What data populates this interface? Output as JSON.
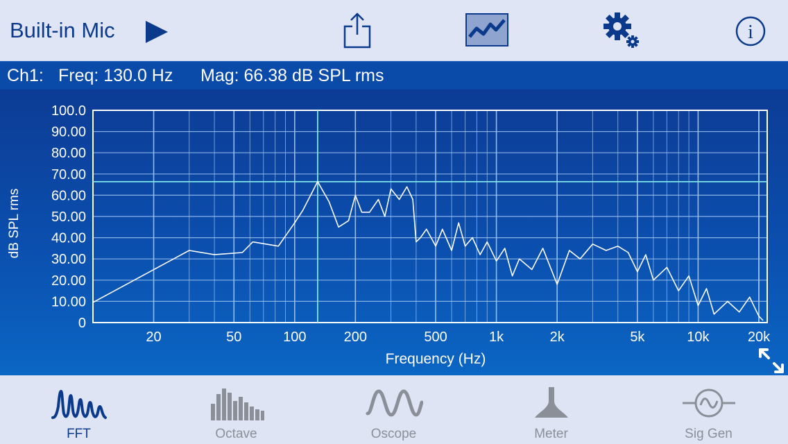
{
  "header": {
    "source_label": "Built-in Mic",
    "icons": [
      "play-icon",
      "share-icon",
      "trace-view-icon",
      "gear-icon",
      "info-icon"
    ]
  },
  "readout": {
    "channel": "Ch1:",
    "freq": "Freq: 130.0 Hz",
    "mag": "Mag: 66.38 dB SPL rms"
  },
  "colors": {
    "accent": "#0b3a8c",
    "inactive": "#8a8f98",
    "plot_bg_top": "#0c3c95",
    "plot_bg_bottom": "#0b66c4",
    "grid": "#9fc3ef",
    "trace": "#ffffff",
    "cursor": "#7fe6e6"
  },
  "chart_data": {
    "type": "line",
    "title": "",
    "xlabel": "Frequency (Hz)",
    "ylabel": "dB SPL rms",
    "x_scale": "log",
    "xlim": [
      10,
      22000
    ],
    "ylim": [
      0,
      100
    ],
    "x_ticks": [
      20,
      50,
      100,
      200,
      500,
      1000,
      2000,
      5000,
      10000,
      20000
    ],
    "x_tick_labels": [
      "20",
      "50",
      "100",
      "200",
      "500",
      "1k",
      "2k",
      "5k",
      "10k",
      "20k"
    ],
    "y_ticks": [
      0,
      10,
      20,
      30,
      40,
      50,
      60,
      70,
      80,
      90,
      100
    ],
    "y_tick_labels": [
      "0",
      "10.00",
      "20.00",
      "30.00",
      "40.00",
      "50.00",
      "60.00",
      "70.00",
      "80.00",
      "90.00",
      "100.0"
    ],
    "grid": true,
    "cursor": {
      "x": 130.0,
      "y": 66.38
    },
    "series": [
      {
        "x": [
          10,
          30,
          40,
          55,
          62,
          72,
          83,
          100,
          110,
          130,
          148,
          165,
          185,
          200,
          215,
          235,
          260,
          280,
          300,
          330,
          360,
          385,
          400,
          420,
          450,
          500,
          540,
          600,
          650,
          700,
          760,
          830,
          900,
          1000,
          1100,
          1200,
          1300,
          1500,
          1700,
          2000,
          2300,
          2600,
          3000,
          3500,
          4000,
          4500,
          5000,
          5500,
          6000,
          7000,
          8000,
          9000,
          10000,
          11000,
          12000,
          14000,
          16000,
          18000,
          20000,
          21000
        ],
        "y": [
          9.5,
          34,
          32,
          33,
          38,
          37,
          36,
          47,
          53,
          66.4,
          57,
          45,
          48,
          60,
          52,
          52,
          58,
          50,
          63,
          58,
          64,
          58,
          38,
          40,
          44,
          36,
          44,
          34,
          47,
          36,
          40,
          32,
          38,
          29,
          35,
          22,
          30,
          25,
          35,
          18,
          34,
          30,
          37,
          34,
          36,
          33,
          24,
          32,
          20,
          26,
          15,
          22,
          8,
          16,
          4,
          10,
          5,
          12,
          3,
          1
        ]
      }
    ]
  },
  "tabs": [
    {
      "label": "FFT",
      "icon": "fft-icon",
      "active": true
    },
    {
      "label": "Octave",
      "icon": "octave-bars-icon",
      "active": false
    },
    {
      "label": "Oscope",
      "icon": "oscope-wave-icon",
      "active": false
    },
    {
      "label": "Meter",
      "icon": "meter-icon",
      "active": false
    },
    {
      "label": "Sig Gen",
      "icon": "sig-gen-icon",
      "active": false
    }
  ]
}
